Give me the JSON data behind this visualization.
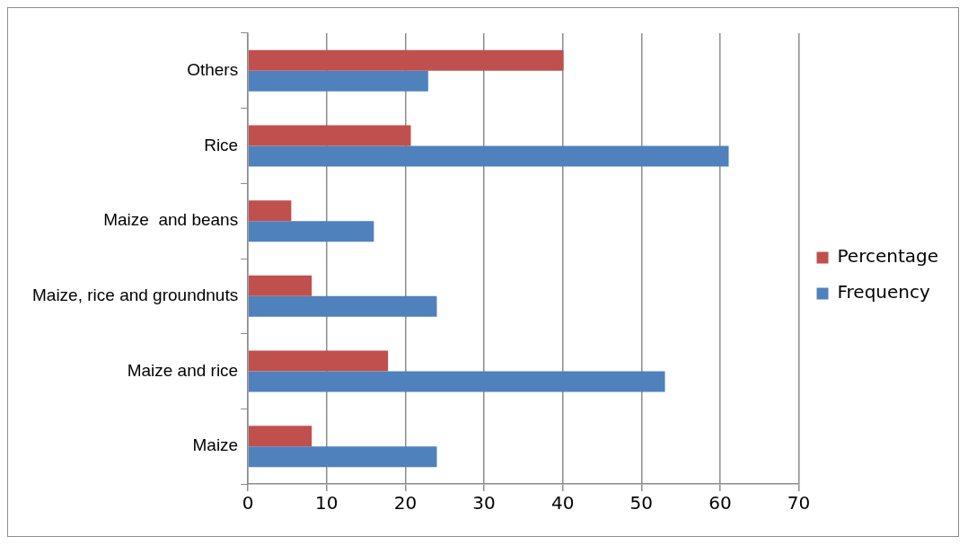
{
  "chart_data": {
    "type": "bar",
    "orientation": "horizontal",
    "categories": [
      "Others",
      "Rice",
      "Maize  and beans",
      "Maize, rice and groundnuts",
      "Maize and rice",
      "Maize"
    ],
    "series": [
      {
        "name": "Percentage",
        "color": "#c0504d",
        "values": [
          40.1,
          20.7,
          5.5,
          8.1,
          17.8,
          8.1
        ]
      },
      {
        "name": "Frequency",
        "color": "#4f81bd",
        "values": [
          22.9,
          61.1,
          16.0,
          24.0,
          53.0,
          24.0
        ]
      }
    ],
    "xlim": [
      0,
      70
    ],
    "xticks": [
      0,
      10,
      20,
      30,
      40,
      50,
      60,
      70
    ],
    "grid": "x",
    "legend": "right"
  }
}
